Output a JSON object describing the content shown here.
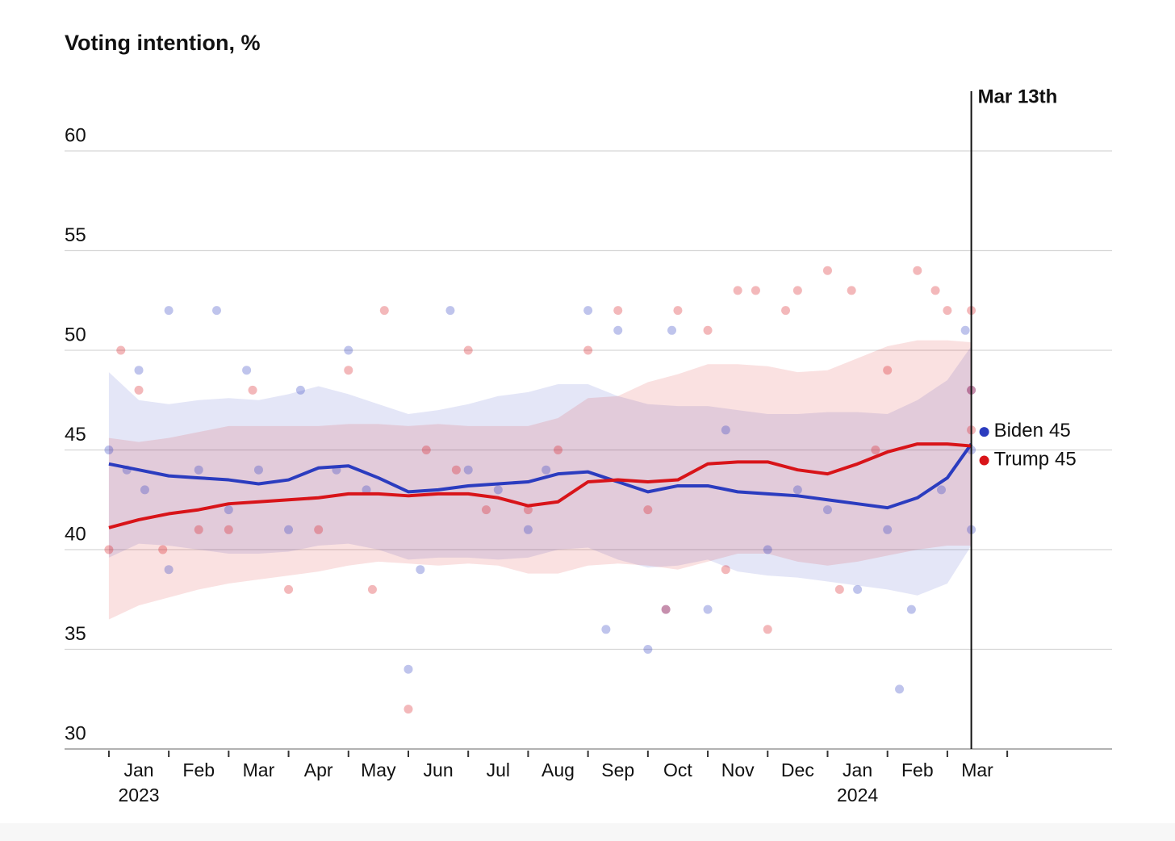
{
  "chart_data": {
    "type": "line",
    "title": "Voting intention, %",
    "xlim": [
      -0.74,
      16.75
    ],
    "ylim": [
      30,
      60
    ],
    "yticks": [
      30,
      35,
      40,
      45,
      50,
      55,
      60
    ],
    "grid": true,
    "xticks": [
      {
        "value": 0,
        "label": "Jan"
      },
      {
        "value": 1,
        "label": "Feb"
      },
      {
        "value": 2,
        "label": "Mar"
      },
      {
        "value": 3,
        "label": "Apr"
      },
      {
        "value": 4,
        "label": "May"
      },
      {
        "value": 5,
        "label": "Jun"
      },
      {
        "value": 6,
        "label": "Jul"
      },
      {
        "value": 7,
        "label": "Aug"
      },
      {
        "value": 8,
        "label": "Sep"
      },
      {
        "value": 9,
        "label": "Oct"
      },
      {
        "value": 10,
        "label": "Nov"
      },
      {
        "value": 11,
        "label": "Dec"
      },
      {
        "value": 12,
        "label": "Jan"
      },
      {
        "value": 13,
        "label": "Feb"
      },
      {
        "value": 14,
        "label": "Mar"
      },
      {
        "value": 15,
        "label": null
      }
    ],
    "year_labels": [
      {
        "value": 0,
        "label": "2023"
      },
      {
        "value": 12,
        "label": "2024"
      }
    ],
    "annotation": {
      "text": "Mar 13th",
      "x": 14.4
    },
    "series": [
      {
        "name": "Biden",
        "color": "#2b3cbf",
        "end_value": 45,
        "x": [
          0,
          0.5,
          1,
          1.5,
          2,
          2.5,
          3,
          3.5,
          4,
          4.5,
          5,
          5.5,
          6,
          6.5,
          7,
          7.5,
          8,
          8.5,
          9,
          9.5,
          10,
          10.5,
          11,
          11.5,
          12,
          12.5,
          13,
          13.5,
          14,
          14.4
        ],
        "values": [
          44.3,
          44.0,
          43.7,
          43.6,
          43.5,
          43.3,
          43.5,
          44.1,
          44.2,
          43.6,
          42.9,
          43.0,
          43.2,
          43.3,
          43.4,
          43.8,
          43.9,
          43.4,
          42.9,
          43.2,
          43.2,
          42.9,
          42.8,
          42.7,
          42.5,
          42.3,
          42.1,
          42.6,
          43.6,
          45.3
        ],
        "band_upper": [
          48.9,
          47.5,
          47.3,
          47.5,
          47.6,
          47.5,
          47.8,
          48.2,
          47.8,
          47.3,
          46.8,
          47.0,
          47.3,
          47.7,
          47.9,
          48.3,
          48.3,
          47.7,
          47.3,
          47.2,
          47.2,
          47.0,
          46.8,
          46.8,
          46.9,
          46.9,
          46.8,
          47.5,
          48.5,
          50.2
        ],
        "band_lower": [
          39.6,
          40.3,
          40.2,
          40.0,
          39.8,
          39.8,
          39.9,
          40.2,
          40.3,
          40.0,
          39.5,
          39.6,
          39.6,
          39.5,
          39.6,
          40.0,
          40.1,
          39.5,
          39.1,
          39.2,
          39.5,
          38.9,
          38.7,
          38.6,
          38.4,
          38.2,
          38.0,
          37.7,
          38.3,
          40.2
        ],
        "poll_x": [
          0,
          0.3,
          0.5,
          0.6,
          1,
          1,
          1.5,
          2,
          1.8,
          2.3,
          2.5,
          3,
          3.2,
          4,
          4.3,
          5,
          5.2,
          5.7,
          6,
          6.5,
          7.3,
          8,
          8.3,
          8.5,
          9,
          9.3,
          9.4,
          10,
          10.3,
          11,
          12,
          12.5,
          13,
          13.2,
          13.4,
          13.9,
          14.3,
          14.4,
          14.4,
          14.4,
          7,
          3.8,
          11.5
        ],
        "poll_values": [
          45,
          44,
          49,
          43,
          52,
          39,
          44,
          42,
          52,
          49,
          44,
          41,
          48,
          50,
          43,
          34,
          39,
          52,
          44,
          43,
          44,
          52,
          36,
          51,
          35,
          37,
          51,
          37,
          46,
          40,
          42,
          38,
          41,
          33,
          37,
          43,
          51,
          45,
          48,
          41,
          41,
          44,
          43
        ]
      },
      {
        "name": "Trump",
        "color": "#d81419",
        "end_value": 45,
        "x": [
          0,
          0.5,
          1,
          1.5,
          2,
          2.5,
          3,
          3.5,
          4,
          4.5,
          5,
          5.5,
          6,
          6.5,
          7,
          7.5,
          8,
          8.5,
          9,
          9.5,
          10,
          10.5,
          11,
          11.5,
          12,
          12.5,
          13,
          13.5,
          14,
          14.4
        ],
        "values": [
          41.1,
          41.5,
          41.8,
          42.0,
          42.3,
          42.4,
          42.5,
          42.6,
          42.8,
          42.8,
          42.7,
          42.8,
          42.8,
          42.6,
          42.2,
          42.4,
          43.4,
          43.5,
          43.4,
          43.5,
          44.3,
          44.4,
          44.4,
          44.0,
          43.8,
          44.3,
          44.9,
          45.3,
          45.3,
          45.2
        ],
        "band_upper": [
          45.6,
          45.4,
          45.6,
          45.9,
          46.2,
          46.2,
          46.2,
          46.2,
          46.3,
          46.3,
          46.2,
          46.3,
          46.2,
          46.2,
          46.2,
          46.6,
          47.6,
          47.7,
          48.4,
          48.8,
          49.3,
          49.3,
          49.2,
          48.9,
          49.0,
          49.6,
          50.2,
          50.5,
          50.5,
          50.4
        ],
        "band_lower": [
          36.5,
          37.2,
          37.6,
          38.0,
          38.3,
          38.5,
          38.7,
          38.9,
          39.2,
          39.4,
          39.3,
          39.2,
          39.3,
          39.2,
          38.8,
          38.8,
          39.2,
          39.3,
          39.2,
          39.0,
          39.4,
          39.8,
          39.8,
          39.4,
          39.2,
          39.4,
          39.7,
          40.0,
          40.2,
          40.2
        ],
        "poll_x": [
          0,
          0.2,
          0.5,
          0.9,
          1.5,
          2,
          2.4,
          3,
          3.5,
          4,
          4.4,
          4.6,
          5,
          5.3,
          6,
          6.3,
          7,
          7.5,
          8,
          8.5,
          9.3,
          9.5,
          10,
          10.3,
          10.5,
          10.8,
          11,
          11.3,
          11.5,
          12,
          12.4,
          12.2,
          13,
          13.5,
          13.8,
          14,
          14.4,
          14.4,
          14.4,
          5.8,
          9,
          12.8
        ],
        "poll_values": [
          40,
          50,
          48,
          40,
          41,
          41,
          48,
          38,
          41,
          49,
          38,
          52,
          32,
          45,
          50,
          42,
          42,
          45,
          50,
          52,
          37,
          52,
          51,
          39,
          53,
          53,
          36,
          52,
          53,
          54,
          53,
          38,
          49,
          54,
          53,
          52,
          52,
          46,
          48,
          44,
          42,
          45
        ]
      }
    ]
  }
}
